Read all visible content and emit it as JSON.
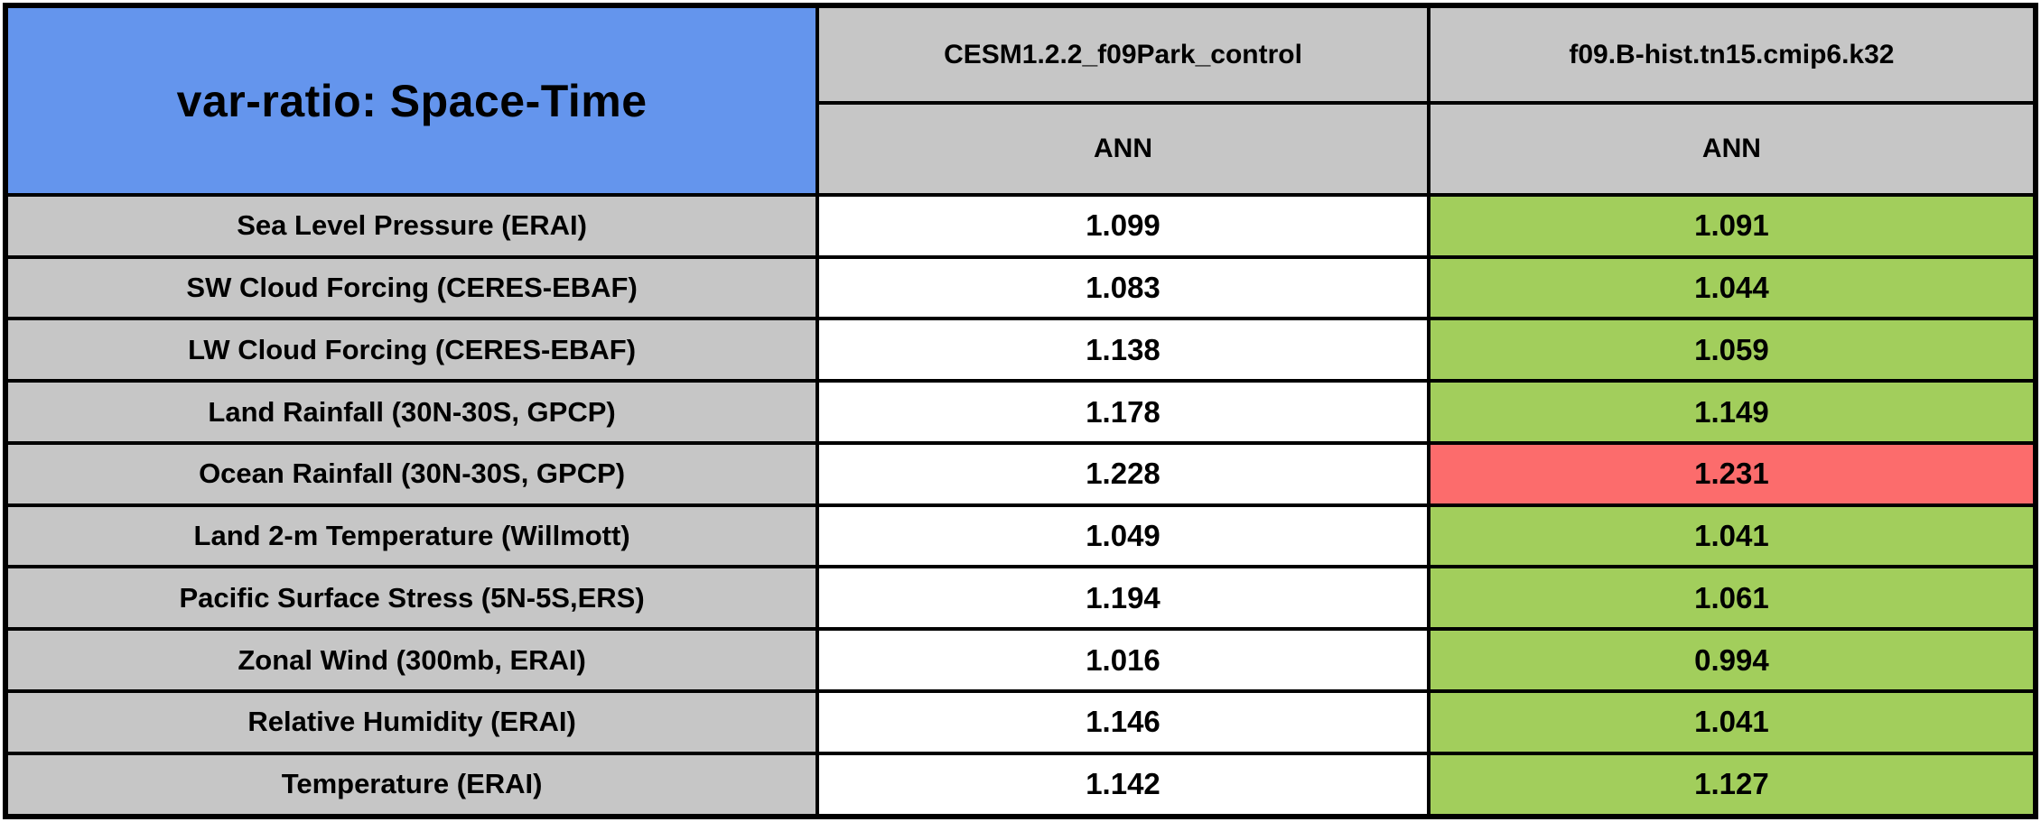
{
  "header": {
    "title": "var-ratio: Space-Time",
    "col1": {
      "model": "CESM1.2.2_f09Park_control",
      "season": "ANN"
    },
    "col2": {
      "model": "f09.B-hist.tn15.cmip6.k32",
      "season": "ANN"
    }
  },
  "rows": [
    {
      "label": "Sea Level Pressure (ERAI)",
      "control": "1.099",
      "test": "1.091",
      "test_status": "better"
    },
    {
      "label": "SW Cloud Forcing (CERES-EBAF)",
      "control": "1.083",
      "test": "1.044",
      "test_status": "better"
    },
    {
      "label": "LW Cloud Forcing (CERES-EBAF)",
      "control": "1.138",
      "test": "1.059",
      "test_status": "better"
    },
    {
      "label": "Land Rainfall (30N-30S, GPCP)",
      "control": "1.178",
      "test": "1.149",
      "test_status": "better"
    },
    {
      "label": "Ocean Rainfall (30N-30S, GPCP)",
      "control": "1.228",
      "test": "1.231",
      "test_status": "worse"
    },
    {
      "label": "Land 2-m Temperature (Willmott)",
      "control": "1.049",
      "test": "1.041",
      "test_status": "better"
    },
    {
      "label": "Pacific Surface Stress (5N-5S,ERS)",
      "control": "1.194",
      "test": "1.061",
      "test_status": "better"
    },
    {
      "label": "Zonal Wind (300mb, ERAI)",
      "control": "1.016",
      "test": "0.994",
      "test_status": "better"
    },
    {
      "label": "Relative Humidity (ERAI)",
      "control": "1.146",
      "test": "1.041",
      "test_status": "better"
    },
    {
      "label": "Temperature (ERAI)",
      "control": "1.142",
      "test": "1.127",
      "test_status": "better"
    }
  ],
  "colors": {
    "title_bg": "#6495ED",
    "header_bg": "#C6C6C6",
    "value_bg": "#FFFFFF",
    "better_bg": "#A2CE5C",
    "worse_bg": "#FC6C6C",
    "border": "#000000",
    "text": "#000000"
  },
  "chart_data": {
    "type": "table",
    "title": "var-ratio: Space-Time",
    "columns": [
      "CESM1.2.2_f09Park_control (ANN)",
      "f09.B-hist.tn15.cmip6.k32 (ANN)"
    ],
    "row_labels": [
      "Sea Level Pressure (ERAI)",
      "SW Cloud Forcing (CERES-EBAF)",
      "LW Cloud Forcing (CERES-EBAF)",
      "Land Rainfall (30N-30S, GPCP)",
      "Ocean Rainfall (30N-30S, GPCP)",
      "Land 2-m Temperature (Willmott)",
      "Pacific Surface Stress (5N-5S,ERS)",
      "Zonal Wind (300mb, ERAI)",
      "Relative Humidity (ERAI)",
      "Temperature (ERAI)"
    ],
    "values": [
      [
        1.099,
        1.091
      ],
      [
        1.083,
        1.044
      ],
      [
        1.138,
        1.059
      ],
      [
        1.178,
        1.149
      ],
      [
        1.228,
        1.231
      ],
      [
        1.049,
        1.041
      ],
      [
        1.194,
        1.061
      ],
      [
        1.016,
        0.994
      ],
      [
        1.146,
        1.041
      ],
      [
        1.142,
        1.127
      ]
    ],
    "test_column_highlight": [
      "green",
      "green",
      "green",
      "green",
      "red",
      "green",
      "green",
      "green",
      "green",
      "green"
    ],
    "highlight_meaning": "green = test run variance ratio closer to 1 than control; red = farther from 1"
  }
}
